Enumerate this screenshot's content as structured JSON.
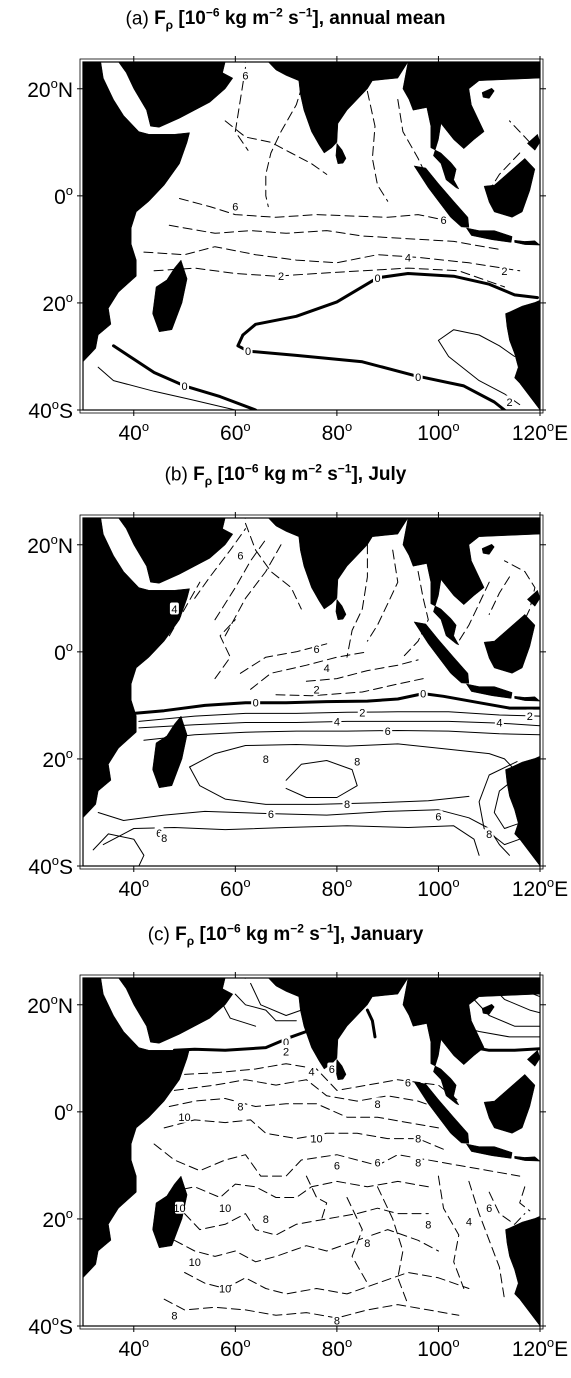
{
  "panels": [
    {
      "id": "a",
      "title_prefix": "(a)",
      "title_symbol": "F",
      "title_subscript": "ρ",
      "title_units_pre": "[10",
      "title_exp1": "−6",
      "title_units_mid1": " kg m",
      "title_exp2": "−2",
      "title_units_mid2": " s",
      "title_exp3": "−1",
      "title_units_post": "], annual mean",
      "contour_labels": [
        "6",
        "6",
        "6",
        "4",
        "2",
        "2",
        "0",
        "0",
        "0",
        "0",
        "2"
      ]
    },
    {
      "id": "b",
      "title_prefix": "(b)",
      "title_symbol": "F",
      "title_subscript": "ρ",
      "title_units_pre": "[10",
      "title_exp1": "−6",
      "title_units_mid1": " kg m",
      "title_exp2": "−2",
      "title_units_mid2": " s",
      "title_exp3": "−1",
      "title_units_post": "], July",
      "contour_labels": [
        "6",
        "4",
        "6",
        "4",
        "2",
        "0",
        "0",
        "2",
        "4",
        "6",
        "4",
        "2",
        "8",
        "8",
        "8",
        "6",
        "6",
        "8",
        "6",
        "8"
      ]
    },
    {
      "id": "c",
      "title_prefix": "(c)",
      "title_symbol": "F",
      "title_subscript": "ρ",
      "title_units_pre": "[10",
      "title_exp1": "−6",
      "title_units_mid1": " kg m",
      "title_exp2": "−2",
      "title_units_mid2": " s",
      "title_exp3": "−1",
      "title_units_post": "], January",
      "contour_labels": [
        "0",
        "2",
        "4",
        "6",
        "6",
        "8",
        "8",
        "10",
        "10",
        "8",
        "6",
        "6",
        "8",
        "10",
        "10",
        "8",
        "6",
        "4",
        "8",
        "8",
        "10",
        "10",
        "8",
        "8"
      ]
    }
  ],
  "axes": {
    "lat_labels": [
      {
        "deg": "20",
        "suffix": "N"
      },
      {
        "deg": "0",
        "suffix": ""
      },
      {
        "deg": "20",
        "suffix": ""
      },
      {
        "deg": "40",
        "suffix": "S"
      }
    ],
    "lon_labels": [
      {
        "deg": "40",
        "suffix": ""
      },
      {
        "deg": "60",
        "suffix": ""
      },
      {
        "deg": "80",
        "suffix": ""
      },
      {
        "deg": "100",
        "suffix": ""
      },
      {
        "deg": "120",
        "suffix": "E"
      }
    ]
  },
  "colors": {
    "land": "#000000",
    "ocean": "#ffffff",
    "contour": "#000000"
  }
}
